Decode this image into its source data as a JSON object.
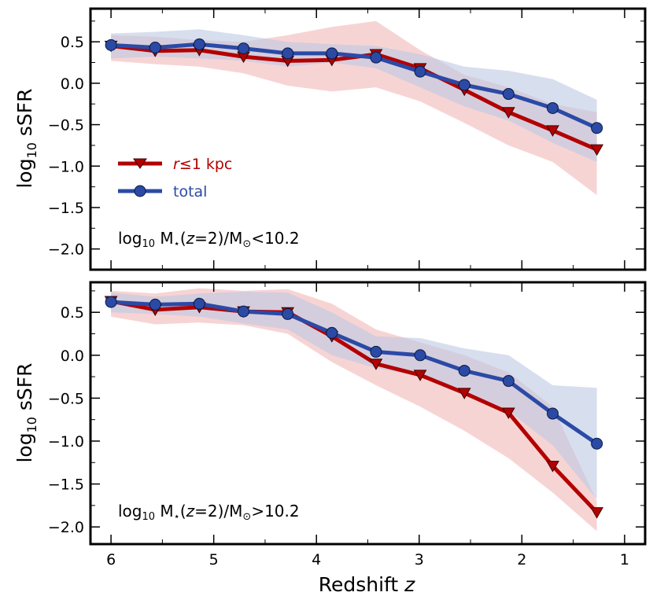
{
  "chart_data": {
    "type": "line",
    "xlabel": "Redshift",
    "xlabel_var": "z",
    "ylabel": "log",
    "ylabel_sub": "10",
    "ylabel_tail": " sSFR",
    "xlim": [
      6.2,
      0.8
    ],
    "x_ticks": [
      6,
      5,
      4,
      3,
      2,
      1
    ],
    "x_tick_labels": [
      "6",
      "5",
      "4",
      "3",
      "2",
      "1"
    ],
    "colors": {
      "core": "#b30000",
      "total": "#2b4aa6",
      "core_band": "#f4c6c6",
      "total_band": "#bcc8e2"
    },
    "legend": {
      "core_prefix": "r",
      "core_rel": "≤1 kpc",
      "total": "total"
    },
    "panels": [
      {
        "name": "low-mass",
        "ylim": [
          -2.25,
          0.9
        ],
        "y_ticks": [
          0.5,
          0.0,
          -0.5,
          -1.0,
          -1.5,
          -2.0
        ],
        "y_tick_labels": [
          "0.5",
          "0.0",
          "−0.5",
          "−1.0",
          "−1.5",
          "−2.0"
        ],
        "annotation": {
          "pre": "log",
          "sub": "10",
          "mid": " M",
          "star": "⋆",
          "zpre": "(",
          "zvar": "z",
          "zpost": "=2)/M",
          "sun": "⊙",
          "tail": "<10.2"
        },
        "x": [
          6.0,
          5.57,
          5.14,
          4.71,
          4.28,
          3.85,
          3.42,
          2.99,
          2.56,
          2.13,
          1.7,
          1.27
        ],
        "series": [
          {
            "name": "core",
            "values": [
              0.45,
              0.39,
              0.4,
              0.32,
              0.27,
              0.28,
              0.35,
              0.18,
              -0.08,
              -0.35,
              -0.57,
              -0.8
            ],
            "upper": [
              0.58,
              0.56,
              0.52,
              0.5,
              0.58,
              0.68,
              0.75,
              0.4,
              0.1,
              -0.05,
              -0.25,
              -0.35
            ],
            "lower": [
              0.27,
              0.23,
              0.2,
              0.12,
              -0.03,
              -0.1,
              -0.05,
              -0.22,
              -0.48,
              -0.75,
              -0.95,
              -1.35
            ]
          },
          {
            "name": "total",
            "values": [
              0.46,
              0.43,
              0.47,
              0.42,
              0.36,
              0.36,
              0.31,
              0.14,
              -0.02,
              -0.13,
              -0.3,
              -0.54
            ],
            "upper": [
              0.6,
              0.62,
              0.65,
              0.58,
              0.5,
              0.47,
              0.45,
              0.35,
              0.2,
              0.15,
              0.05,
              -0.2
            ],
            "lower": [
              0.3,
              0.32,
              0.3,
              0.27,
              0.2,
              0.25,
              0.18,
              -0.05,
              -0.28,
              -0.45,
              -0.72,
              -0.95
            ]
          }
        ]
      },
      {
        "name": "high-mass",
        "ylim": [
          -2.2,
          0.85
        ],
        "y_ticks": [
          0.5,
          0.0,
          -0.5,
          -1.0,
          -1.5,
          -2.0
        ],
        "y_tick_labels": [
          "0.5",
          "0.0",
          "−0.5",
          "−1.0",
          "−1.5",
          "−2.0"
        ],
        "annotation": {
          "pre": "log",
          "sub": "10",
          "mid": " M",
          "star": "⋆",
          "zpre": "(",
          "zvar": "z",
          "zpost": "=2)/M",
          "sun": "⊙",
          "tail": ">10.2"
        },
        "x": [
          6.0,
          5.57,
          5.14,
          4.71,
          4.28,
          3.85,
          3.42,
          2.99,
          2.56,
          2.13,
          1.7,
          1.27
        ],
        "series": [
          {
            "name": "core",
            "values": [
              0.63,
              0.53,
              0.56,
              0.51,
              0.5,
              0.22,
              -0.1,
              -0.23,
              -0.44,
              -0.67,
              -1.29,
              -1.83
            ],
            "upper": [
              0.75,
              0.72,
              0.78,
              0.75,
              0.77,
              0.6,
              0.3,
              0.15,
              0.0,
              -0.2,
              -0.6,
              -1.7
            ],
            "lower": [
              0.45,
              0.36,
              0.38,
              0.35,
              0.25,
              -0.08,
              -0.35,
              -0.6,
              -0.88,
              -1.2,
              -1.6,
              -2.05
            ]
          },
          {
            "name": "total",
            "values": [
              0.62,
              0.59,
              0.6,
              0.51,
              0.48,
              0.26,
              0.04,
              0.0,
              -0.18,
              -0.3,
              -0.68,
              -1.03
            ],
            "upper": [
              0.73,
              0.68,
              0.72,
              0.74,
              0.73,
              0.5,
              0.22,
              0.2,
              0.08,
              0.0,
              -0.35,
              -0.38
            ],
            "lower": [
              0.5,
              0.48,
              0.45,
              0.37,
              0.3,
              0.0,
              -0.15,
              -0.25,
              -0.42,
              -0.65,
              -1.05,
              -1.68
            ]
          }
        ]
      }
    ]
  }
}
